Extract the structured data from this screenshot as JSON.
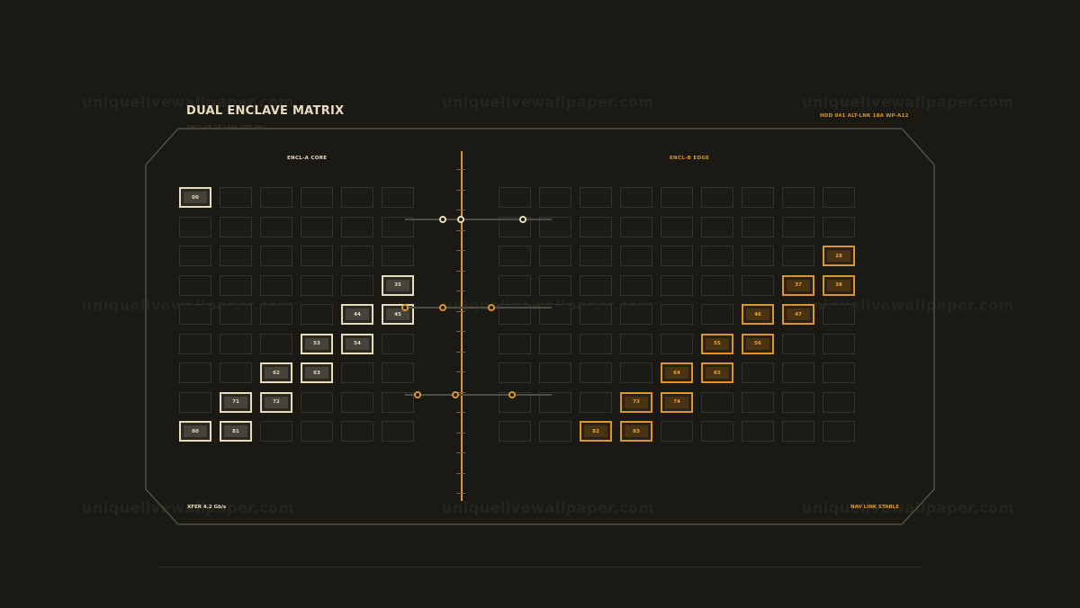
{
  "watermark": "uniquelivewallpaper.com",
  "header": {
    "title": "DUAL ENCLAVE MATRIX",
    "subtitle": "ENCL-VF-23 / SEF-GDT-HV1",
    "status": "HDD 041  ALT-LNK 18A  WP-A12"
  },
  "zones": {
    "a_label": "ENCL-A CORE",
    "b_label": "ENCL-B EDGE"
  },
  "footer": {
    "left": "XFER 4.2 Gb/s",
    "right": "NAV LINK STABLE"
  },
  "grid_a": {
    "cols": 6,
    "rows": 9,
    "active": [
      {
        "row": 0,
        "col": 0,
        "label": "00"
      },
      {
        "row": 3,
        "col": 5,
        "label": "35"
      },
      {
        "row": 4,
        "col": 4,
        "label": "44"
      },
      {
        "row": 4,
        "col": 5,
        "label": "45"
      },
      {
        "row": 5,
        "col": 3,
        "label": "53"
      },
      {
        "row": 5,
        "col": 4,
        "label": "54"
      },
      {
        "row": 6,
        "col": 2,
        "label": "62"
      },
      {
        "row": 6,
        "col": 3,
        "label": "63"
      },
      {
        "row": 7,
        "col": 1,
        "label": "71"
      },
      {
        "row": 7,
        "col": 2,
        "label": "72"
      },
      {
        "row": 8,
        "col": 0,
        "label": "80"
      },
      {
        "row": 8,
        "col": 1,
        "label": "81"
      }
    ]
  },
  "grid_b": {
    "cols": 9,
    "rows": 9,
    "active": [
      {
        "row": 2,
        "col": 8,
        "label": "28"
      },
      {
        "row": 3,
        "col": 7,
        "label": "37"
      },
      {
        "row": 3,
        "col": 8,
        "label": "38"
      },
      {
        "row": 4,
        "col": 6,
        "label": "46"
      },
      {
        "row": 4,
        "col": 7,
        "label": "47"
      },
      {
        "row": 5,
        "col": 5,
        "label": "55"
      },
      {
        "row": 5,
        "col": 6,
        "label": "56"
      },
      {
        "row": 6,
        "col": 4,
        "label": "64"
      },
      {
        "row": 6,
        "col": 5,
        "label": "65"
      },
      {
        "row": 7,
        "col": 3,
        "label": "73"
      },
      {
        "row": 7,
        "col": 4,
        "label": "74"
      },
      {
        "row": 8,
        "col": 2,
        "label": "82"
      },
      {
        "row": 8,
        "col": 3,
        "label": "83"
      }
    ]
  },
  "colors": {
    "background": "#1a1914",
    "enclave_a": "#e8dcc0",
    "enclave_b": "#d9962f",
    "frame": "#5c5a4a"
  }
}
